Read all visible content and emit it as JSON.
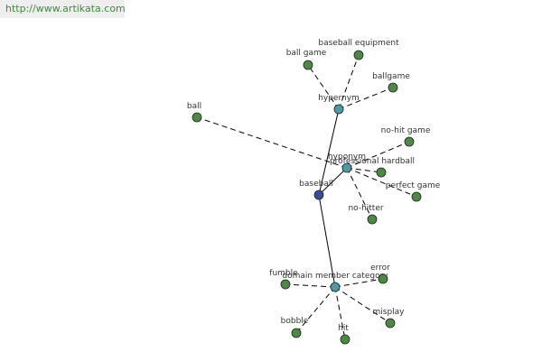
{
  "header": {
    "url": "http://www.artikata.com"
  },
  "nodes": [
    {
      "label": "baseball"
    },
    {
      "label": "hypernym"
    },
    {
      "label": "hyponym"
    },
    {
      "label": "domain member category"
    },
    {
      "label": "baseball equipment"
    },
    {
      "label": "ball game"
    },
    {
      "label": "ballgame"
    },
    {
      "label": "ball"
    },
    {
      "label": "no-hit game"
    },
    {
      "label": "professional hardball"
    },
    {
      "label": "perfect game"
    },
    {
      "label": "no-hitter"
    },
    {
      "label": "error"
    },
    {
      "label": "fumble"
    },
    {
      "label": "bobble"
    },
    {
      "label": "hit"
    },
    {
      "label": "misplay"
    }
  ]
}
